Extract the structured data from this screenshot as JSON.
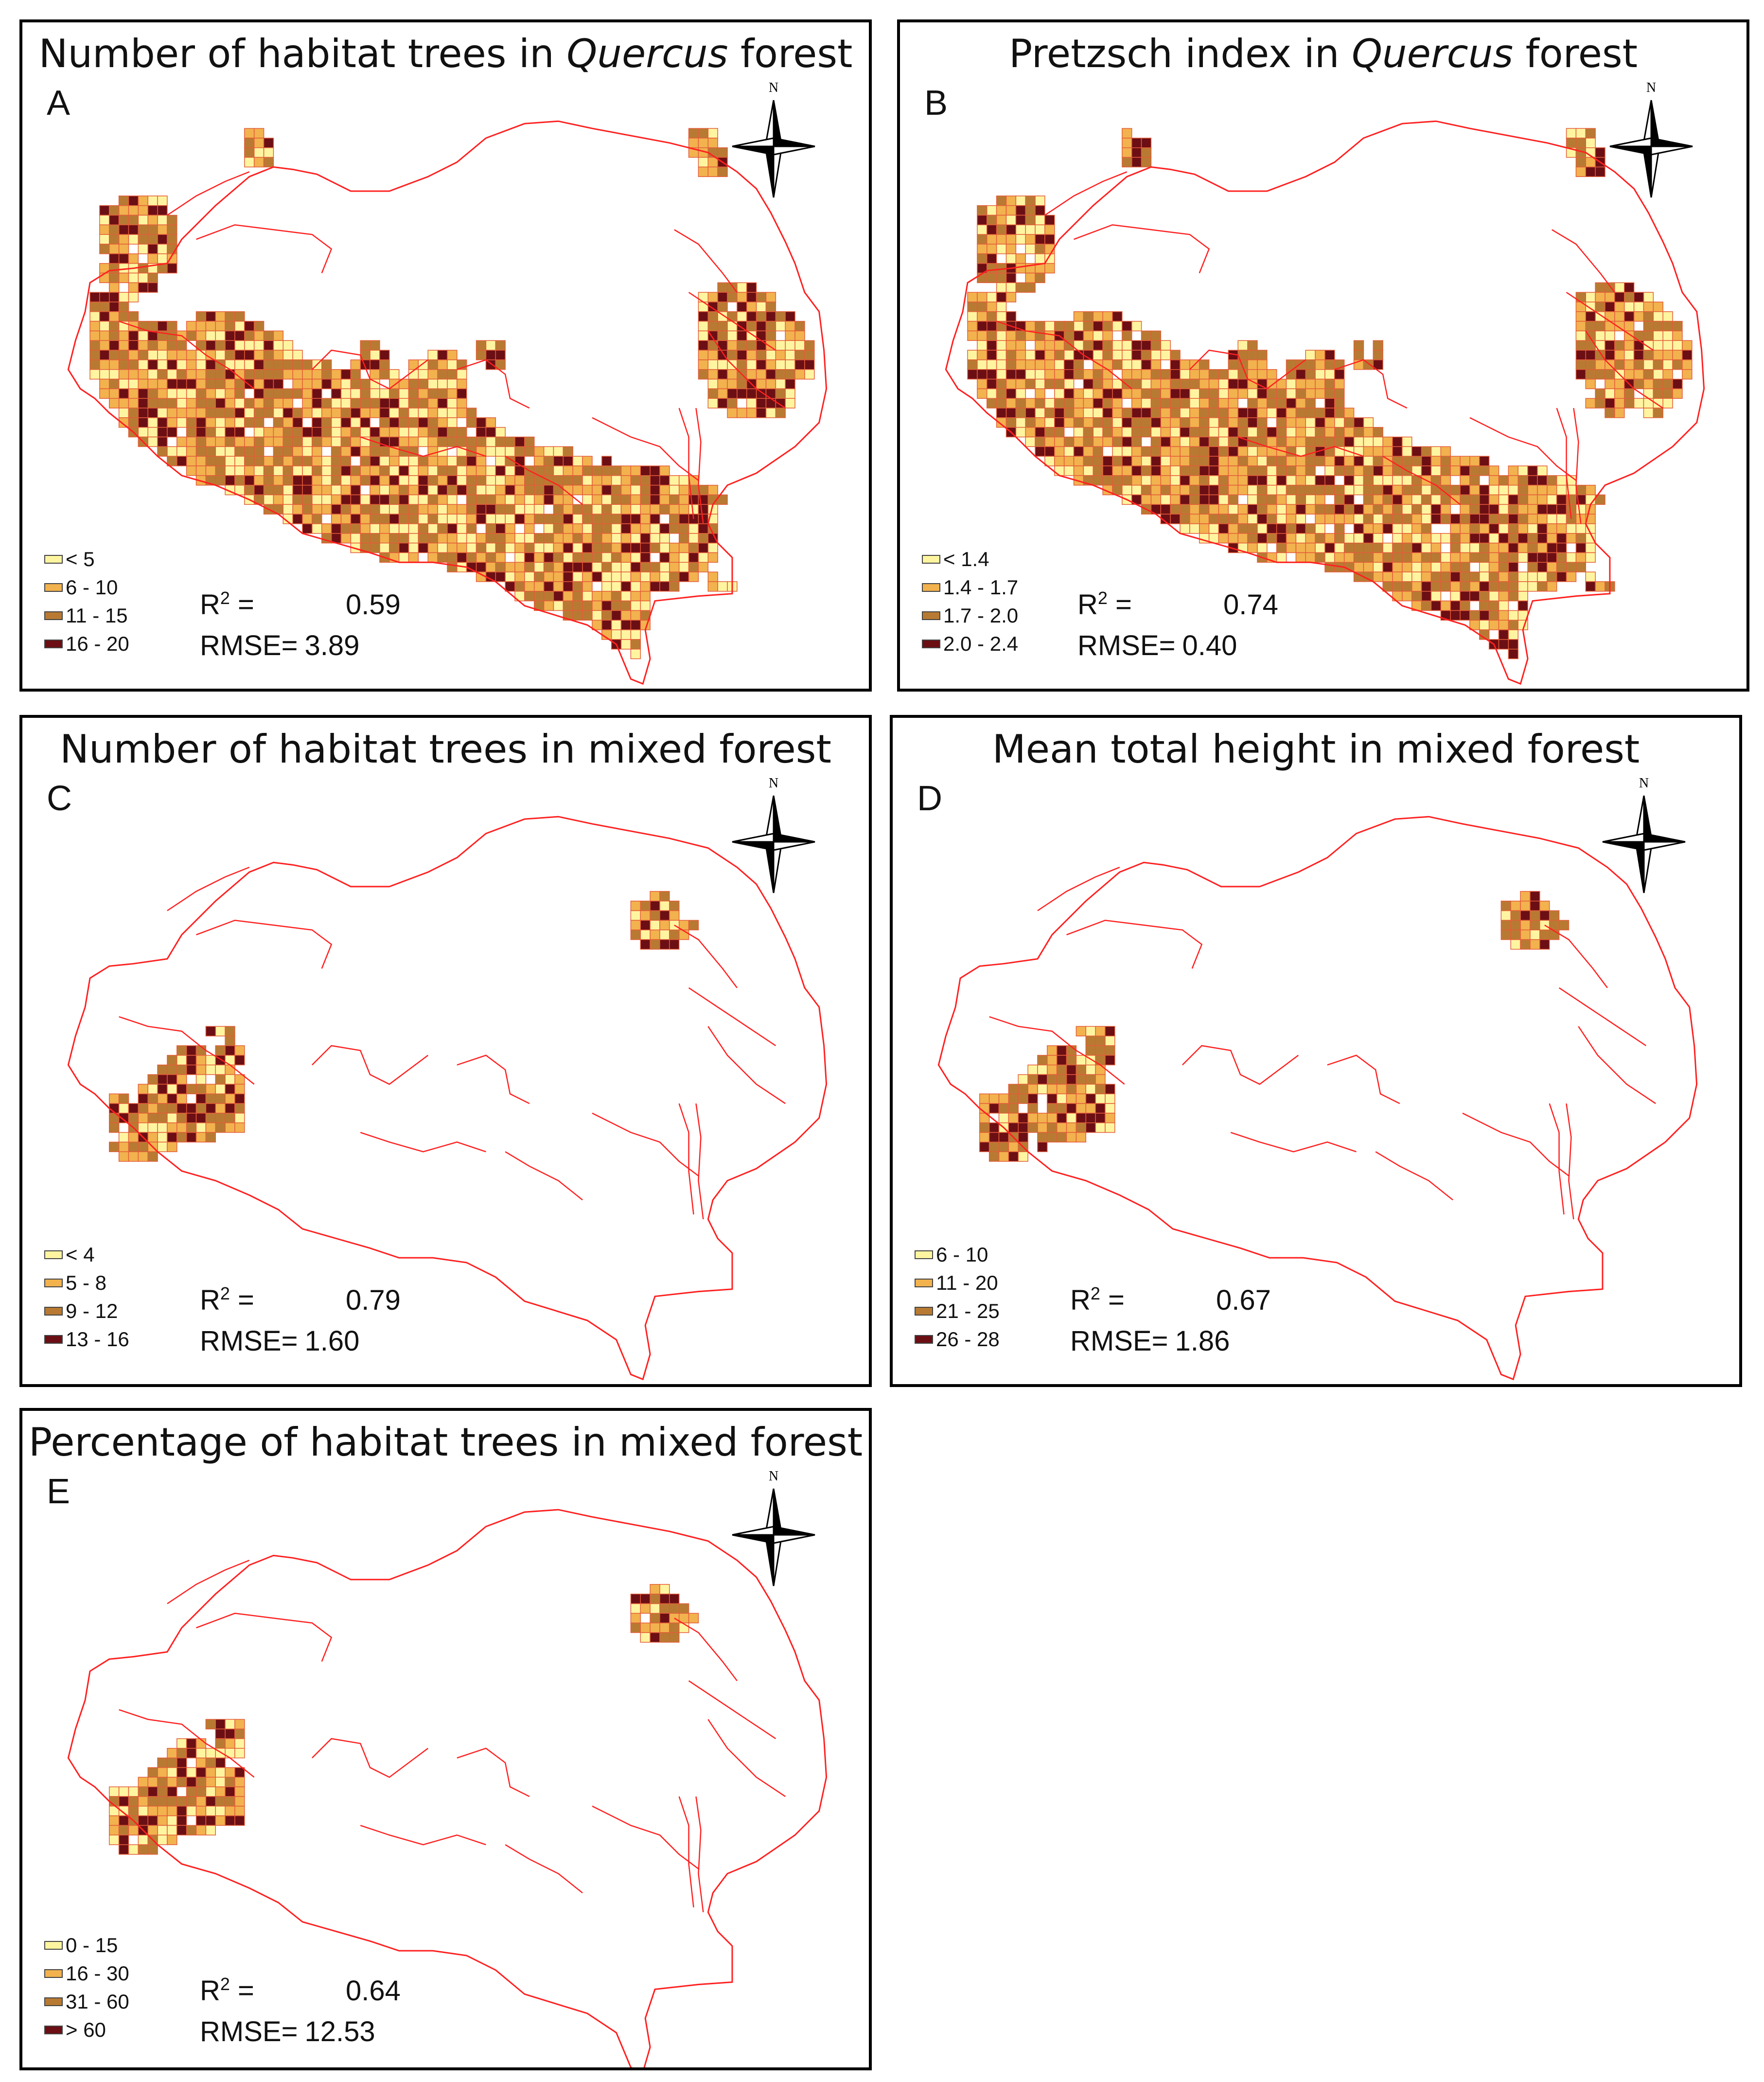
{
  "colors": {
    "boundary": "#ff2020",
    "class1": "#fff5a0",
    "class2": "#f2b24e",
    "class3": "#b87a32",
    "class4": "#6b0f14",
    "gridline": "#e45c3a"
  },
  "compass_label": "N",
  "panels": [
    {
      "id": "A",
      "title_prefix": "Number of habitat trees in ",
      "title_italic": "Quercus",
      "title_suffix": " forest",
      "letter": "A",
      "legend": [
        "< 5",
        "6 - 10",
        "11 - 15",
        "16 - 20"
      ],
      "r2_label": "R",
      "r2_sup": "2",
      "r2_eq": " =",
      "r2_value": "0.59",
      "rmse_label": "RMSE=",
      "rmse_value": "3.89",
      "forest": "quercus"
    },
    {
      "id": "B",
      "title_prefix": "Pretzsch index in ",
      "title_italic": "Quercus",
      "title_suffix": " forest",
      "letter": "B",
      "legend": [
        "< 1.4",
        "1.4 - 1.7",
        "1.7 - 2.0",
        "2.0 - 2.4"
      ],
      "r2_label": "R",
      "r2_sup": "2",
      "r2_eq": " =",
      "r2_value": "0.74",
      "rmse_label": "RMSE=",
      "rmse_value": "0.40",
      "forest": "quercus"
    },
    {
      "id": "C",
      "title_prefix": "Number of habitat trees in mixed forest",
      "title_italic": "",
      "title_suffix": "",
      "letter": "C",
      "legend": [
        "< 4",
        "5 - 8",
        "9 - 12",
        "13 - 16"
      ],
      "r2_label": "R",
      "r2_sup": "2",
      "r2_eq": " =",
      "r2_value": "0.79",
      "rmse_label": "RMSE=",
      "rmse_value": "1.60",
      "forest": "mixed"
    },
    {
      "id": "D",
      "title_prefix": "Mean total height in mixed forest",
      "title_italic": "",
      "title_suffix": "",
      "letter": "D",
      "legend": [
        "6 - 10",
        "11 - 20",
        "21 - 25",
        "26 - 28"
      ],
      "r2_label": "R",
      "r2_sup": "2",
      "r2_eq": " =",
      "r2_value": "0.67",
      "rmse_label": "RMSE=",
      "rmse_value": "1.86",
      "forest": "mixed"
    },
    {
      "id": "E",
      "title_prefix": "Percentage  of habitat trees in mixed forest",
      "title_italic": "",
      "title_suffix": "",
      "letter": "E",
      "legend": [
        "0 - 15",
        "16 - 30",
        "31 - 60",
        "> 60"
      ],
      "r2_label": "R",
      "r2_sup": "2",
      "r2_eq": " =",
      "r2_value": "0.64",
      "rmse_label": "RMSE=",
      "rmse_value": "12.53",
      "forest": "mixed"
    }
  ]
}
